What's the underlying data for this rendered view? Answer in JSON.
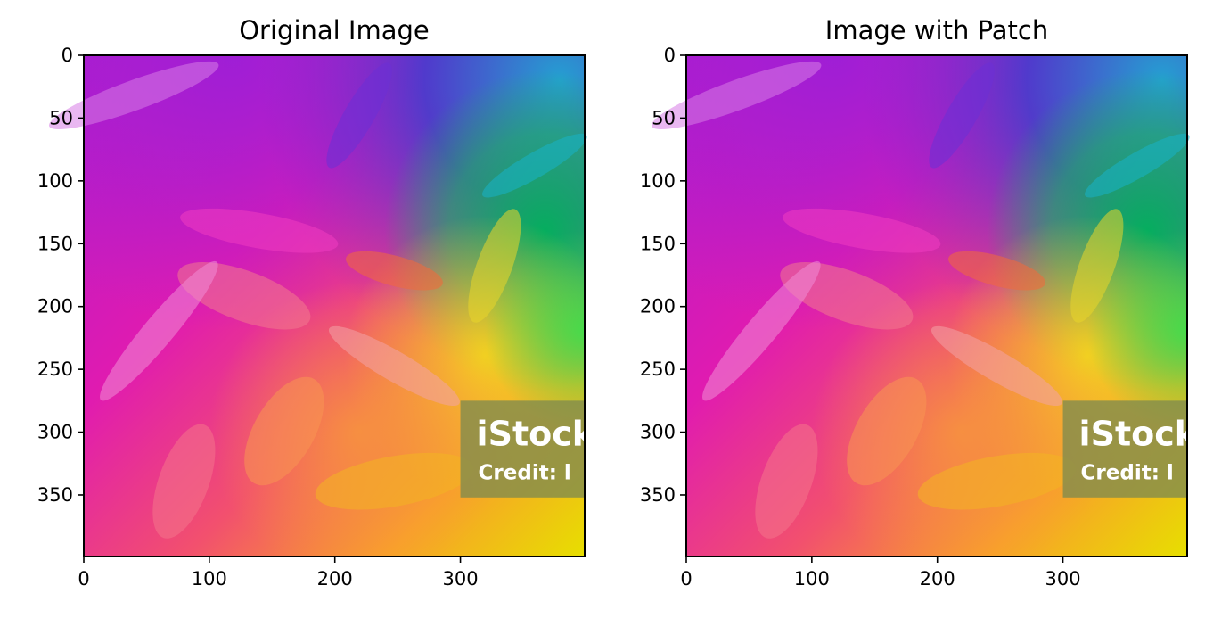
{
  "chart_data": [
    {
      "type": "heatmap",
      "title": "Original Image",
      "xlabel": "",
      "ylabel": "",
      "xlim": [
        0,
        399
      ],
      "ylim": [
        399,
        0
      ],
      "x_ticks": [
        0,
        100,
        200,
        300
      ],
      "y_ticks": [
        0,
        50,
        100,
        150,
        200,
        250,
        300,
        350
      ],
      "watermark": {
        "brand": "iStock",
        "credit": "Credit: l"
      }
    },
    {
      "type": "heatmap",
      "title": "Image with Patch",
      "xlabel": "",
      "ylabel": "",
      "xlim": [
        0,
        399
      ],
      "ylim": [
        399,
        0
      ],
      "x_ticks": [
        0,
        100,
        200,
        300
      ],
      "y_ticks": [
        0,
        50,
        100,
        150,
        200,
        250,
        300,
        350
      ],
      "watermark": {
        "brand": "iStock",
        "credit": "Credit: l"
      }
    }
  ]
}
